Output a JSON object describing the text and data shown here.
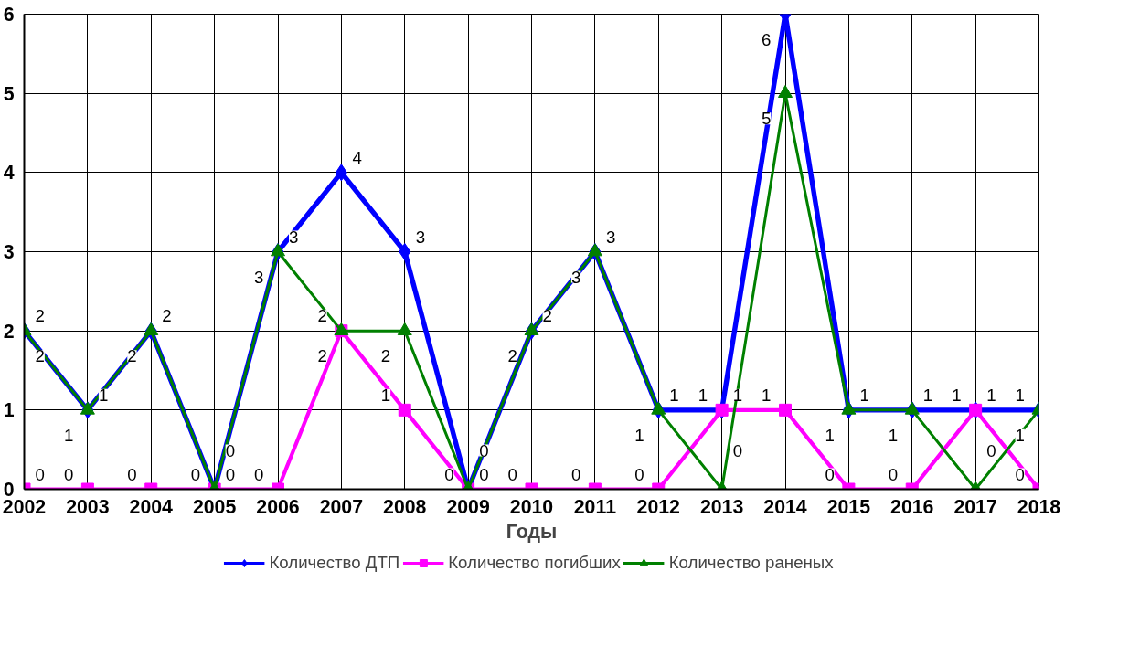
{
  "chart_data": {
    "type": "line",
    "xlabel": "Годы",
    "categories": [
      "2002",
      "2003",
      "2004",
      "2005",
      "2006",
      "2007",
      "2008",
      "2009",
      "2010",
      "2011",
      "2012",
      "2013",
      "2014",
      "2015",
      "2016",
      "2017",
      "2018"
    ],
    "series": [
      {
        "name": "Количество ДТП",
        "color": "#0000ff",
        "marker": "diamond",
        "values": [
          2,
          1,
          2,
          0,
          3,
          4,
          3,
          0,
          2,
          3,
          1,
          1,
          6,
          1,
          1,
          1,
          1
        ]
      },
      {
        "name": "Количество погибших",
        "color": "#ff00ff",
        "marker": "square",
        "values": [
          0,
          0,
          0,
          0,
          0,
          2,
          1,
          0,
          0,
          0,
          0,
          1,
          1,
          0,
          0,
          1,
          0
        ]
      },
      {
        "name": "Количество раненых",
        "color": "#008000",
        "marker": "triangle",
        "values": [
          2,
          1,
          2,
          0,
          3,
          2,
          2,
          0,
          2,
          3,
          1,
          0,
          5,
          1,
          1,
          0,
          1
        ]
      }
    ],
    "ylim": [
      0,
      6
    ],
    "yticks": [
      0,
      1,
      2,
      3,
      4,
      5,
      6
    ],
    "grid": true,
    "legend": "bottom",
    "data_labels": true,
    "line_style": "solid"
  }
}
